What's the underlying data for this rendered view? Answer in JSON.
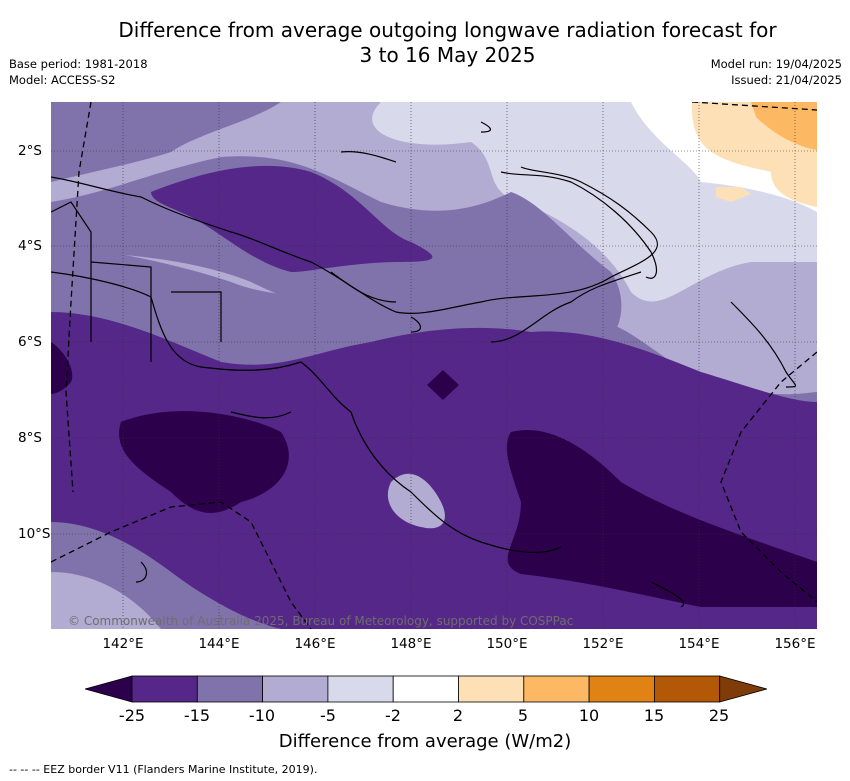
{
  "title_line1": "Difference from average outgoing longwave radiation forecast for",
  "title_line2": "3 to 16 May 2025",
  "base_period": "Base period: 1981-2018",
  "model": "Model: ACCESS-S2",
  "model_run": "Model run: 19/04/2025",
  "issued": "Issued: 21/04/2025",
  "copyright": "© Commonwealth of Australia 2025, Bureau of Meteorology, supported by COSPPac",
  "longitude_ticks": [
    "142°E",
    "144°E",
    "146°E",
    "148°E",
    "150°E",
    "152°E",
    "154°E",
    "156°E"
  ],
  "latitude_ticks": [
    "2°S",
    "4°S",
    "6°S",
    "8°S",
    "10°S"
  ],
  "colorbar": {
    "label": "Difference from average (W/m2)",
    "ticks": [
      "-25",
      "-15",
      "-10",
      "-5",
      "-2",
      "2",
      "5",
      "10",
      "15",
      "25"
    ],
    "colors": [
      "#2d004b",
      "#542788",
      "#8073ac",
      "#b2abd2",
      "#d8daeb",
      "#ffffff",
      "#fee0b6",
      "#fdb863",
      "#e08214",
      "#b35806",
      "#7f3b08"
    ]
  },
  "legend_eez": "-- -- -- EEZ border V11 (Flanders Marine Institute, 2019)."
}
